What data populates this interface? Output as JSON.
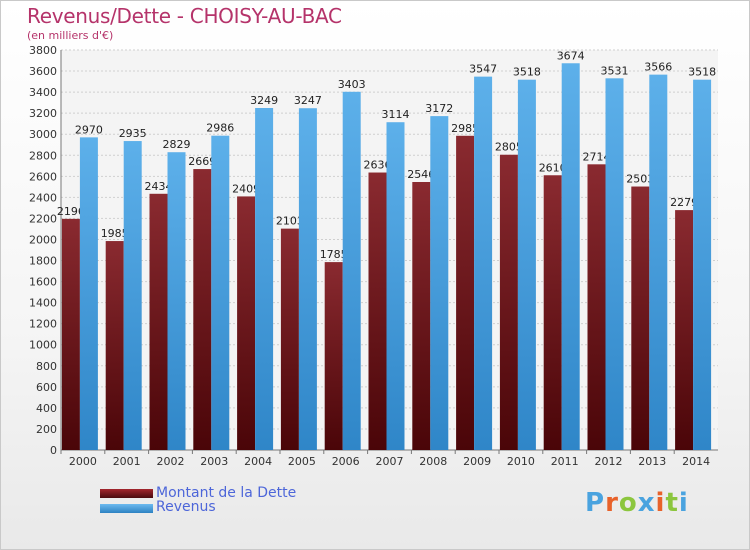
{
  "header": {
    "title": "Revenus/Dette - CHOISY-AU-BAC",
    "subtitle": "(en milliers d'€)"
  },
  "legend": {
    "debt_label": "Montant de la Dette",
    "revenue_label": "Revenus"
  },
  "logo": {
    "letters": [
      "P",
      "r",
      "o",
      "x",
      "i",
      "t",
      "i"
    ],
    "colors": [
      "#4aa3df",
      "#e8622a",
      "#8cc63e",
      "#4aa3df",
      "#e8622a",
      "#8cc63e",
      "#4aa3df"
    ]
  },
  "chart_data": {
    "type": "bar",
    "title": "Revenus/Dette - CHOISY-AU-BAC",
    "ylabel": "(en milliers d'€)",
    "ylim": [
      0,
      3800
    ],
    "yticks": [
      0,
      200,
      400,
      600,
      800,
      1000,
      1200,
      1400,
      1600,
      1800,
      2000,
      2200,
      2400,
      2600,
      2800,
      3000,
      3200,
      3400,
      3600,
      3800
    ],
    "grid": true,
    "categories": [
      "2000",
      "2001",
      "2002",
      "2003",
      "2004",
      "2005",
      "2006",
      "2007",
      "2008",
      "2009",
      "2010",
      "2011",
      "2012",
      "2013",
      "2014"
    ],
    "series": [
      {
        "name": "Montant de la Dette",
        "color": "#7a1a1f",
        "values": [
          2196,
          1985,
          2434,
          2669,
          2409,
          2103,
          1785,
          2636,
          2546,
          2985,
          2805,
          2610,
          2714,
          2503,
          2279
        ],
        "labels": [
          "2196",
          "1985",
          "2434",
          "2669",
          "2409",
          "2103",
          "1785",
          "2636",
          "2546",
          "2985",
          "2805",
          "2610",
          "2714",
          "2503",
          "2279"
        ]
      },
      {
        "name": "Revenus",
        "color": "#4aa3df",
        "values": [
          2970,
          2935,
          2829,
          2986,
          3249,
          3247,
          3403,
          3114,
          3172,
          3547,
          3518,
          3674,
          3531,
          3566,
          3518
        ],
        "labels": [
          "2970",
          "2935",
          "2829",
          "2986",
          "3249",
          "3247",
          "3403",
          "3114",
          "3172",
          "3547",
          "3518",
          "3674",
          "3531",
          "3566",
          "3518"
        ]
      }
    ],
    "legend_position": "bottom-left"
  }
}
